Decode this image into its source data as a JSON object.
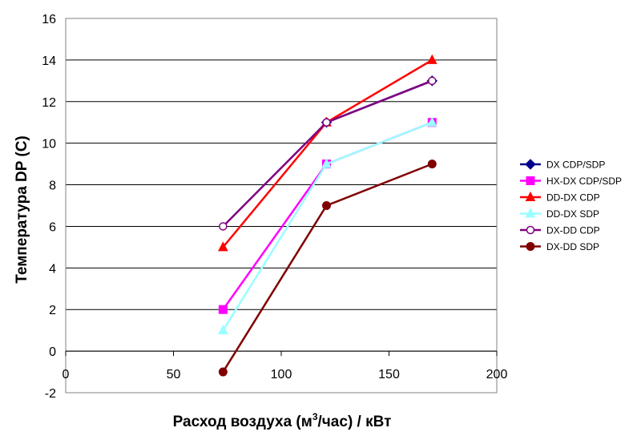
{
  "chart_data": {
    "type": "line",
    "title": "",
    "xlabel": "Расход воздуха (м3/час) / кВт",
    "xlabel_main": "Расход воздуха (м",
    "xlabel_sup": "3",
    "xlabel_tail": "/час) / кВт",
    "ylabel": "Температура DP (C)",
    "xlim": [
      0,
      200
    ],
    "ylim": [
      -2,
      16
    ],
    "xticks": [
      0,
      50,
      100,
      150,
      200
    ],
    "yticks": [
      -2,
      0,
      2,
      4,
      6,
      8,
      10,
      12,
      14,
      16
    ],
    "grid": "horizontal",
    "legend_position": "right",
    "series": [
      {
        "name": "DX CDP/SDP",
        "color": "#00008B",
        "marker": "diamond",
        "x": [
          121,
          170
        ],
        "y": [
          11,
          13
        ]
      },
      {
        "name": "HX-DX CDP/SDP",
        "color": "#FF00FF",
        "marker": "square",
        "x": [
          73,
          121,
          170
        ],
        "y": [
          2,
          9,
          11
        ]
      },
      {
        "name": "DD-DX CDP",
        "color": "#FF0000",
        "marker": "triangle",
        "x": [
          73,
          121,
          170
        ],
        "y": [
          5,
          11,
          14
        ]
      },
      {
        "name": "DD-DX SDP",
        "color": "#99FFFF",
        "marker": "triangle",
        "x": [
          73,
          121,
          170
        ],
        "y": [
          1,
          9,
          11
        ]
      },
      {
        "name": "DX-DD CDP",
        "color": "#800080",
        "marker": "circle-open",
        "x": [
          73,
          121,
          170
        ],
        "y": [
          6,
          11,
          13
        ]
      },
      {
        "name": "DX-DD SDP",
        "color": "#800000",
        "marker": "circle",
        "x": [
          73,
          121,
          170
        ],
        "y": [
          -1,
          7,
          9
        ]
      }
    ]
  }
}
